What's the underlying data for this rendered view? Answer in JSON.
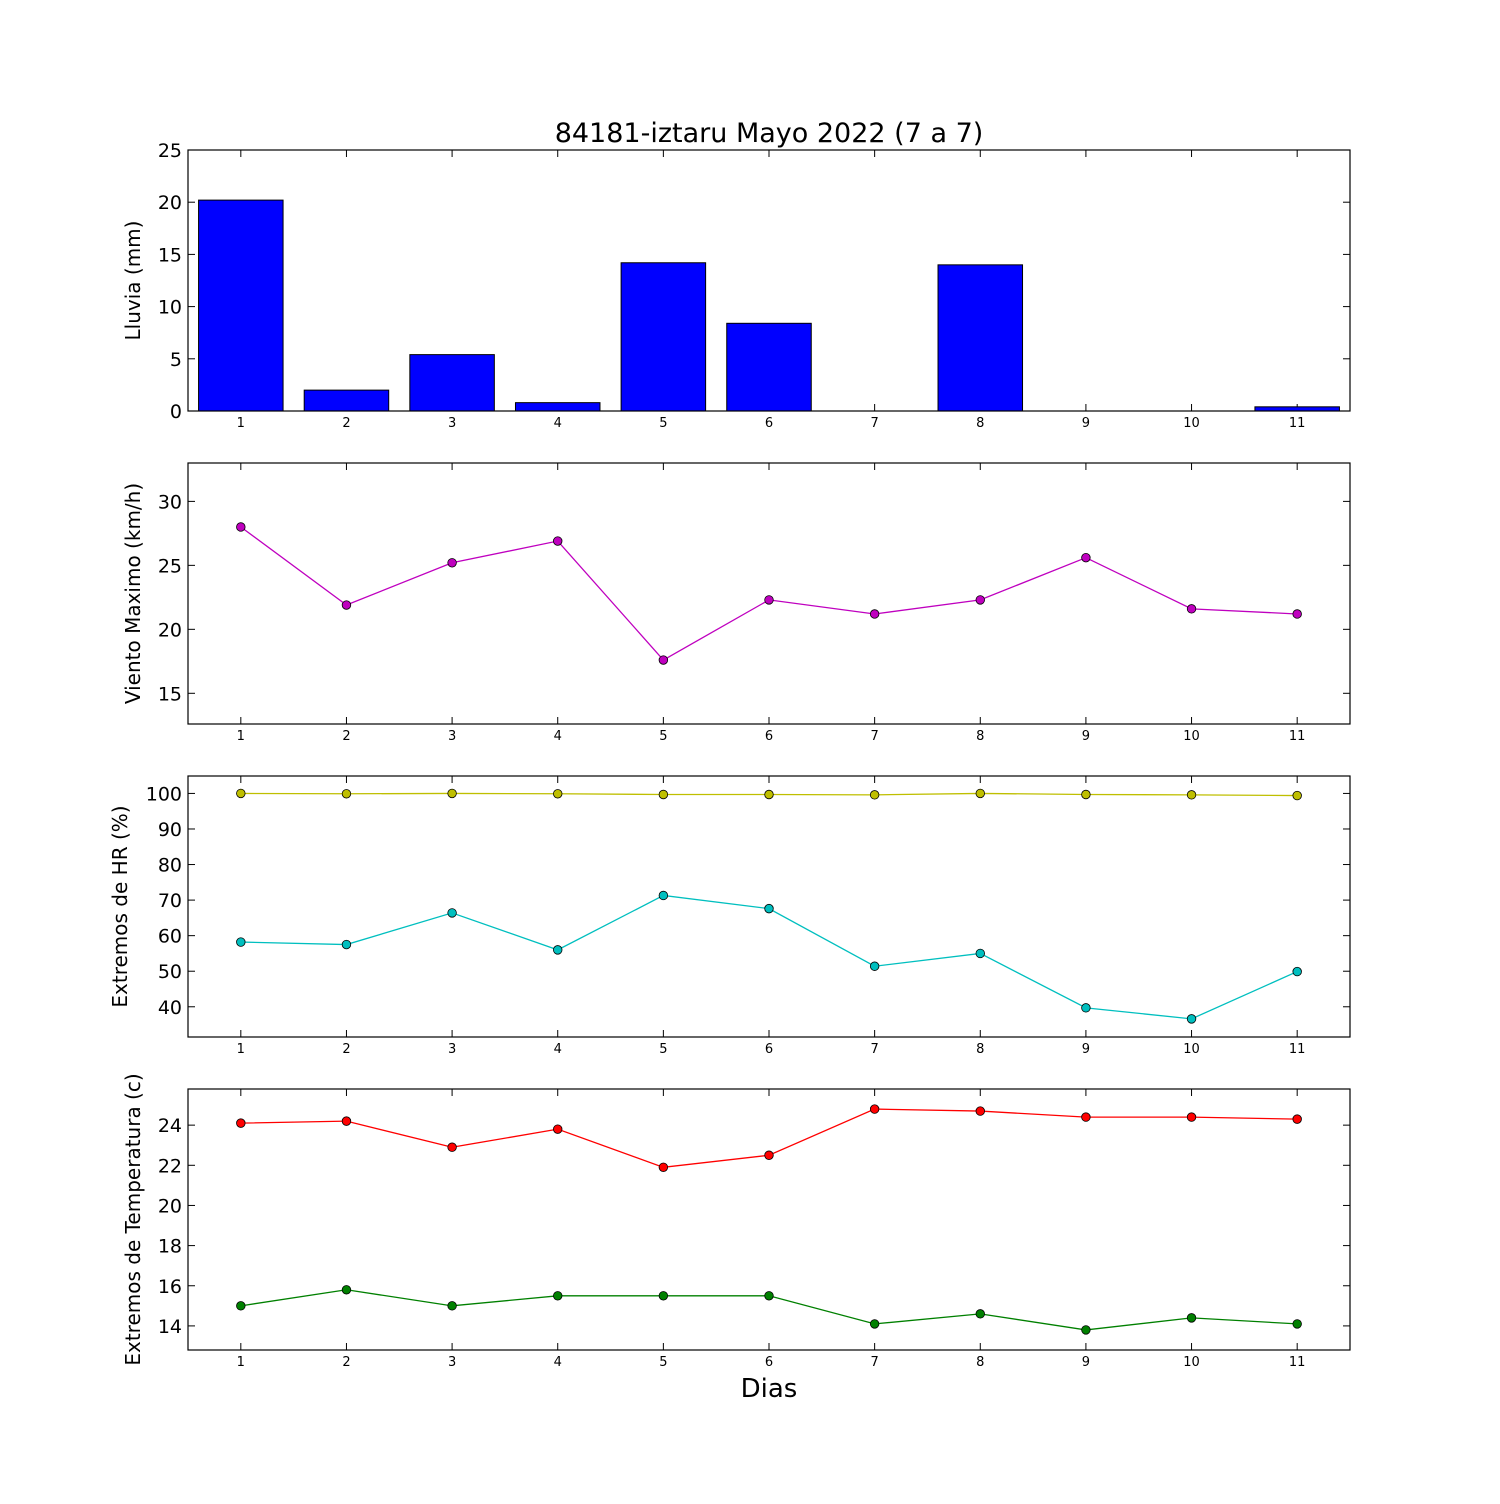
{
  "title": "84181-iztaru Mayo 2022  (7 a 7)",
  "xlabel": "Dias",
  "chart_data": [
    {
      "type": "bar",
      "ylabel": "Lluvia (mm)",
      "categories": [
        "1",
        "2",
        "3",
        "4",
        "5",
        "6",
        "7",
        "8",
        "9",
        "10",
        "11"
      ],
      "values": [
        20.2,
        2.0,
        5.4,
        0.8,
        14.2,
        8.4,
        0.0,
        14.0,
        0.0,
        0.0,
        0.4
      ],
      "ylim": [
        0,
        25
      ],
      "yticks": [
        0,
        5,
        10,
        15,
        20,
        25
      ],
      "color": "#0000ff"
    },
    {
      "type": "line",
      "ylabel": "Viento Maximo (km/h)",
      "x": [
        1,
        2,
        3,
        4,
        5,
        6,
        7,
        8,
        9,
        10,
        11
      ],
      "series": [
        {
          "values": [
            28.0,
            21.9,
            25.2,
            26.9,
            17.6,
            22.3,
            21.2,
            22.3,
            25.6,
            21.6,
            21.2
          ],
          "color": "#bf00bf"
        }
      ],
      "ylim": [
        12.6,
        33.0
      ],
      "yticks": [
        15,
        20,
        25,
        30
      ]
    },
    {
      "type": "line",
      "ylabel": "Extremos de HR (%)",
      "x": [
        1,
        2,
        3,
        4,
        5,
        6,
        7,
        8,
        9,
        10,
        11
      ],
      "series": [
        {
          "values": [
            100.0,
            99.9,
            100.0,
            99.9,
            99.7,
            99.7,
            99.6,
            100.0,
            99.7,
            99.6,
            99.4
          ],
          "color": "#bfbf00"
        },
        {
          "values": [
            58.2,
            57.5,
            66.4,
            56.0,
            71.3,
            67.6,
            51.4,
            55.0,
            39.7,
            36.6,
            49.9
          ],
          "color": "#00bfbf"
        }
      ],
      "ylim": [
        31.5,
        104.9
      ],
      "yticks": [
        40,
        50,
        60,
        70,
        80,
        90,
        100
      ]
    },
    {
      "type": "line",
      "ylabel": "Extremos de Temperatura (c)",
      "x": [
        1,
        2,
        3,
        4,
        5,
        6,
        7,
        8,
        9,
        10,
        11
      ],
      "series": [
        {
          "values": [
            24.1,
            24.2,
            22.9,
            23.8,
            21.9,
            22.5,
            24.8,
            24.7,
            24.4,
            24.4,
            24.3
          ],
          "color": "#ff0000"
        },
        {
          "values": [
            15.0,
            15.8,
            15.0,
            15.5,
            15.5,
            15.5,
            14.1,
            14.6,
            13.8,
            14.4,
            14.1
          ],
          "color": "#008000"
        }
      ],
      "ylim": [
        12.8,
        25.8
      ],
      "yticks": [
        14,
        16,
        18,
        20,
        22,
        24
      ]
    }
  ]
}
